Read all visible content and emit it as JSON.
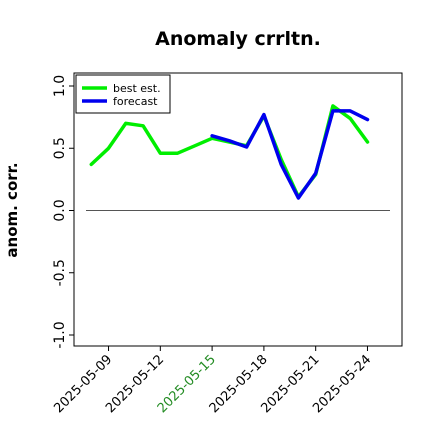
{
  "chart_data": {
    "type": "line",
    "title": "Anomaly crrltn.",
    "xlabel": "",
    "ylabel": "anom. corr.",
    "ylim": [
      -1.0,
      1.0
    ],
    "yticks": [
      "1.0",
      "0.5",
      "0.0",
      "-0.5",
      "-1.0"
    ],
    "ytick_values": [
      1.0,
      0.5,
      0.0,
      -0.5,
      -1.0
    ],
    "xlim": [
      "2025-05-07",
      "2025-05-26"
    ],
    "xticks": [
      "2025-05-09",
      "2025-05-12",
      "2025-05-15",
      "2025-05-18",
      "2025-05-21",
      "2025-05-24"
    ],
    "highlight_tick": "2025-05-15",
    "highlight_color": "#228b22",
    "reference_line": 0.0,
    "grid": false,
    "legend_position": "top-left",
    "series": [
      {
        "name": "best est.",
        "color": "#00ee00",
        "x": [
          "2025-05-08",
          "2025-05-09",
          "2025-05-10",
          "2025-05-11",
          "2025-05-12",
          "2025-05-13",
          "2025-05-14",
          "2025-05-15",
          "2025-05-16",
          "2025-05-17",
          "2025-05-18",
          "2025-05-19",
          "2025-05-20",
          "2025-05-21",
          "2025-05-22",
          "2025-05-23",
          "2025-05-24"
        ],
        "values": [
          0.37,
          0.5,
          0.7,
          0.68,
          0.46,
          0.46,
          0.52,
          0.58,
          0.55,
          0.52,
          0.76,
          0.41,
          0.11,
          0.29,
          0.84,
          0.74,
          0.55
        ]
      },
      {
        "name": "forecast",
        "color": "#0000ee",
        "x": [
          "2025-05-15",
          "2025-05-16",
          "2025-05-17",
          "2025-05-18",
          "2025-05-19",
          "2025-05-20",
          "2025-05-21",
          "2025-05-22",
          "2025-05-23",
          "2025-05-24"
        ],
        "values": [
          0.6,
          0.56,
          0.51,
          0.77,
          0.37,
          0.1,
          0.3,
          0.8,
          0.8,
          0.73
        ]
      }
    ]
  }
}
